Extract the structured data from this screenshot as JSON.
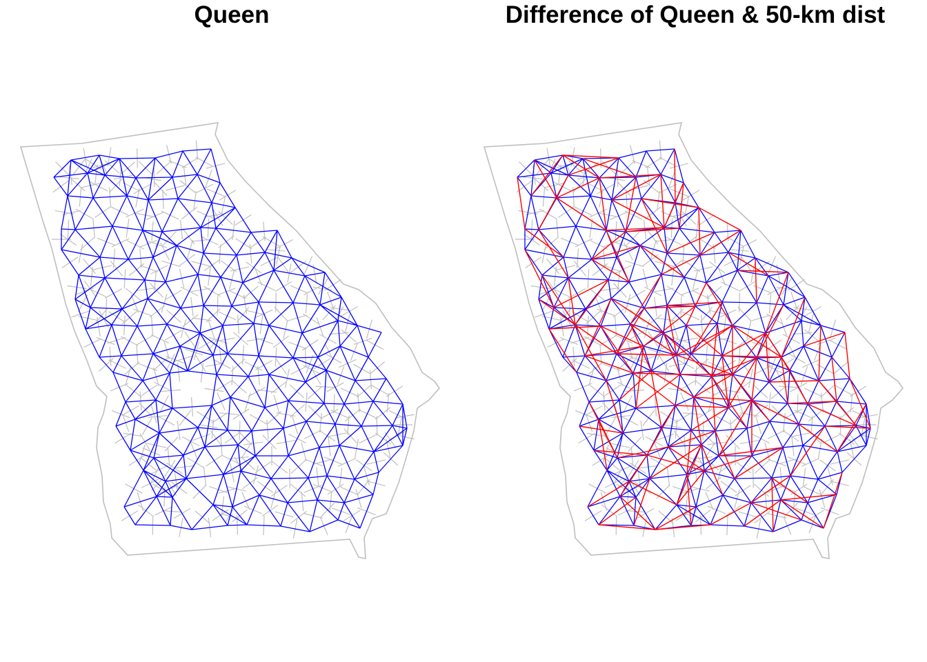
{
  "figure": {
    "panels": [
      {
        "title": "Queen",
        "line_color": "#0000ff",
        "overlay_color": null
      },
      {
        "title": "Difference of Queen & 50-km dist",
        "line_color": "#0000ff",
        "overlay_color": "#ff0000"
      }
    ],
    "county_border_color": "#bebebe",
    "state": "Georgia counties"
  }
}
